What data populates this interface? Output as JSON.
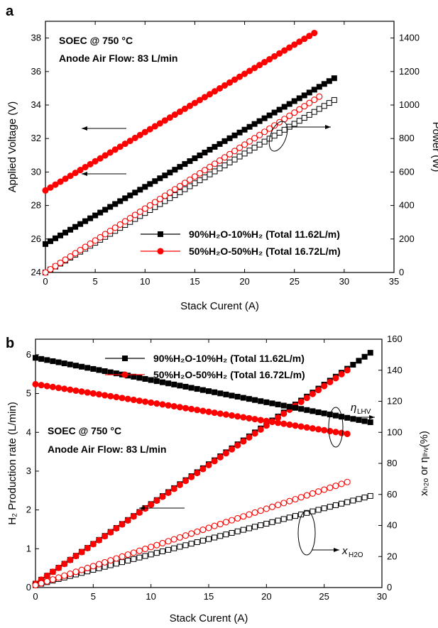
{
  "chart_data": [
    {
      "panel": "a",
      "type": "scatter",
      "xlabel": "Stack Curent (A)",
      "ylabel_left": "Applied Voltage (V)",
      "ylabel_right": "Power (W)",
      "xlim": [
        0,
        35
      ],
      "ylim_left": [
        24,
        39
      ],
      "ylim_right": [
        0,
        1500
      ],
      "xticks": [
        0,
        5,
        10,
        15,
        20,
        25,
        30,
        35
      ],
      "yticks_left": [
        24,
        26,
        28,
        30,
        32,
        34,
        36,
        38
      ],
      "yticks_right": [
        0,
        200,
        400,
        600,
        800,
        1000,
        1200,
        1400
      ],
      "annotation_lines": [
        "SOEC @ 750 °C",
        "Anode Air Flow: 83 L/min"
      ],
      "legend": [
        {
          "label": "90%H₂O-10%H₂ (Total 11.62L/m)",
          "color": "#000000",
          "marker": "square"
        },
        {
          "label": "50%H₂O-50%H₂ (Total 16.72L/m)",
          "color": "#ff0000",
          "marker": "circle"
        }
      ],
      "series": [
        {
          "name": "90%H₂O-10%H₂ (Total 11.62L/m)",
          "axis": "left",
          "color": "#000000",
          "marker": "square",
          "filled": true,
          "x": [
            0,
            29
          ],
          "y": [
            25.7,
            35.6
          ]
        },
        {
          "name": "50%H₂O-50%H₂ (Total 16.72L/m)",
          "axis": "left",
          "color": "#ff0000",
          "marker": "circle",
          "filled": true,
          "x": [
            0,
            27
          ],
          "y": [
            28.9,
            38.3
          ]
        },
        {
          "name": "90%H₂O-10%H₂ (Total 11.62L/m)",
          "axis": "right",
          "color": "#000000",
          "marker": "square",
          "filled": false,
          "x": [
            0,
            29
          ],
          "y": [
            0,
            1030
          ]
        },
        {
          "name": "50%H₂O-50%H₂ (Total 16.72L/m)",
          "axis": "right",
          "color": "#ff0000",
          "marker": "circle",
          "filled": false,
          "x": [
            0,
            27.5
          ],
          "y": [
            0,
            1050
          ]
        }
      ],
      "step": 0.5
    },
    {
      "panel": "b",
      "type": "scatter",
      "xlabel": "Stack Curent (A)",
      "ylabel_left": "H₂ Production rate (L/min)",
      "ylabel_right": "xₕ₂ₒ or ηₗₕᵥ(%)",
      "xlim": [
        0,
        30
      ],
      "ylim_left": [
        0,
        6.4
      ],
      "ylim_right": [
        0,
        160
      ],
      "xticks": [
        0,
        5,
        10,
        15,
        20,
        25,
        30
      ],
      "yticks_left": [
        0,
        1,
        2,
        3,
        4,
        5,
        6
      ],
      "yticks_right": [
        0,
        20,
        40,
        60,
        80,
        100,
        120,
        140,
        160
      ],
      "annotation_lines": [
        "SOEC @ 750 °C",
        "Anode Air Flow: 83 L/min"
      ],
      "eta_label": "ηLHV",
      "x_label": "xH2O",
      "legend": [
        {
          "label": "90%H₂O-10%H₂ (Total 11.62L/m)",
          "color": "#000000",
          "marker": "square"
        },
        {
          "label": "50%H₂O-50%H₂ (Total 16.72L/m)",
          "color": "#ff0000",
          "marker": "circle"
        }
      ],
      "series": [
        {
          "name": "90%H₂O-10%H₂ (Total 11.62L/m)",
          "axis": "left",
          "color": "#000000",
          "marker": "square",
          "filled": true,
          "x": [
            0,
            29
          ],
          "y": [
            0.1,
            6.05
          ]
        },
        {
          "name": "50%H₂O-50%H₂ (Total 16.72L/m)",
          "axis": "left",
          "color": "#ff0000",
          "marker": "circle",
          "filled": true,
          "x": [
            0,
            27
          ],
          "y": [
            0.1,
            5.6
          ]
        },
        {
          "name": "90%H₂O-10%H₂ (Total 11.62L/m)",
          "axis": "right",
          "color": "#000000",
          "marker": "square",
          "filled": true,
          "x": [
            0,
            29
          ],
          "y": [
            148,
            106.5
          ]
        },
        {
          "name": "50%H₂O-50%H₂ (Total 16.72L/m)",
          "axis": "right",
          "color": "#ff0000",
          "marker": "circle",
          "filled": true,
          "x": [
            0,
            27
          ],
          "y": [
            131,
            99
          ]
        },
        {
          "name": "90%H₂O-10%H₂ (Total 11.62L/m)",
          "axis": "right",
          "color": "#000000",
          "marker": "square",
          "filled": false,
          "x": [
            0,
            29
          ],
          "y": [
            1.5,
            59
          ]
        },
        {
          "name": "50%H₂O-50%H₂ (Total 16.72L/m)",
          "axis": "right",
          "color": "#ff0000",
          "marker": "circle",
          "filled": false,
          "x": [
            0,
            27
          ],
          "y": [
            1.5,
            68
          ]
        }
      ],
      "step": 0.5
    }
  ]
}
